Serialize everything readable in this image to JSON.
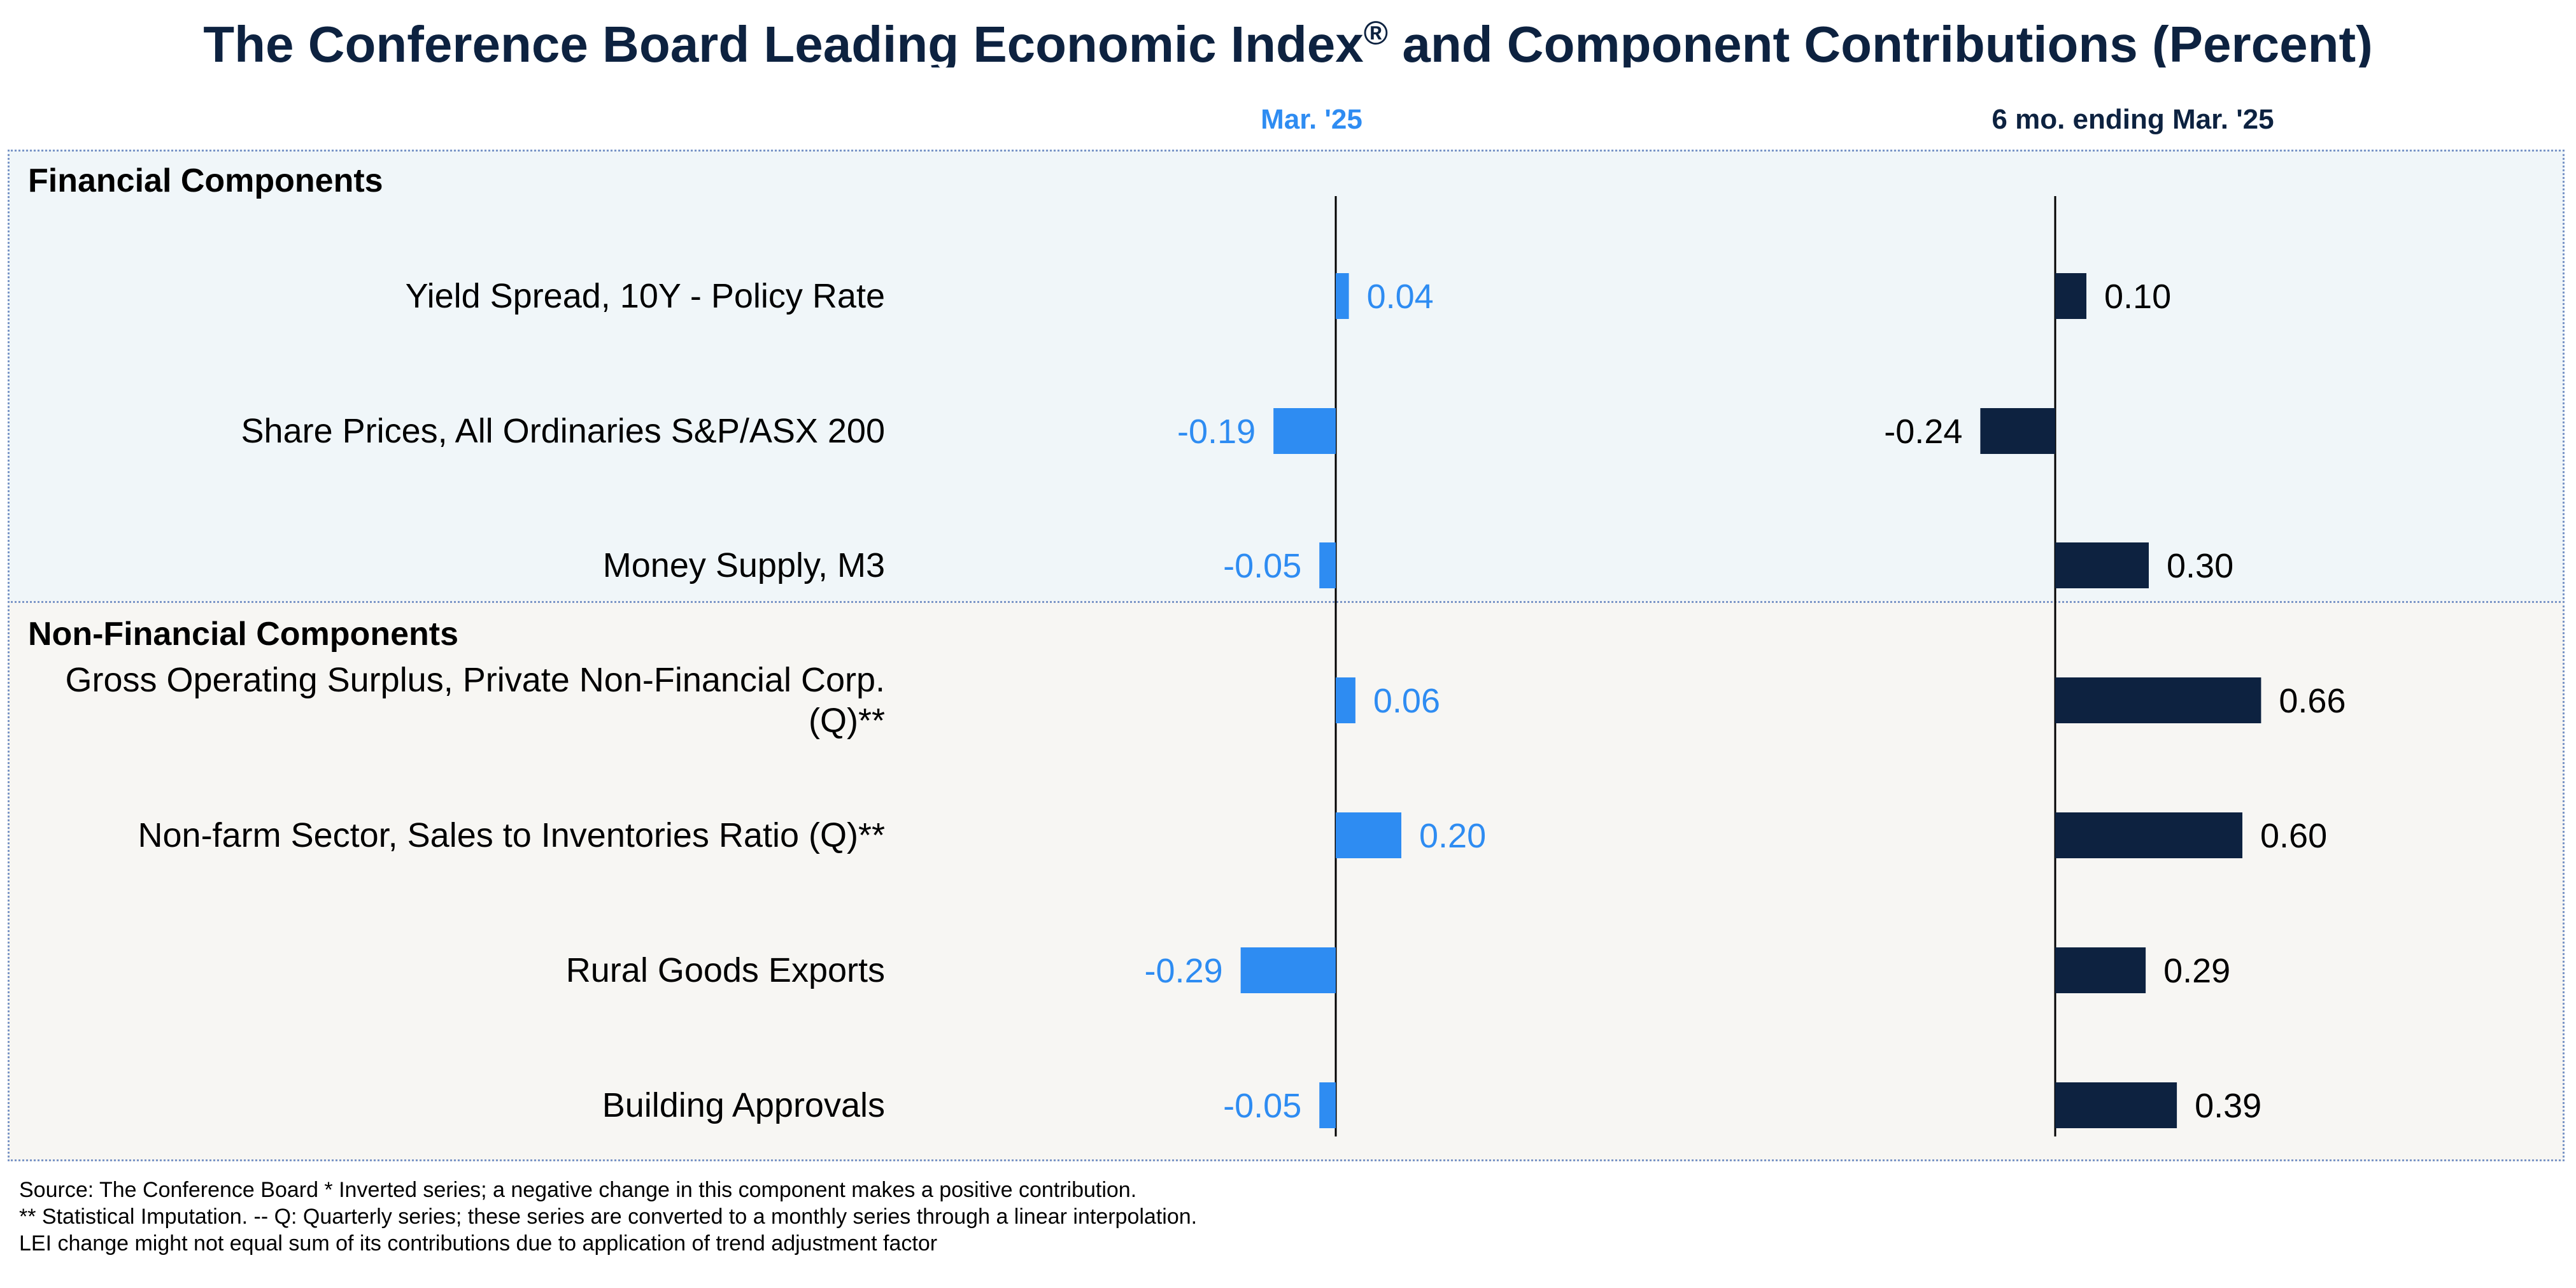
{
  "title": "The Conference Board Leading Economic Index",
  "title_mark": "®",
  "title_suffix": " and Component Contributions (Percent)",
  "columns": [
    "Mar. '25",
    "6 mo. ending Mar. '25"
  ],
  "colors": {
    "monthly_bar": "#2e8cf2",
    "six_month_bar": "#0d2240",
    "title": "#0d2240"
  },
  "sections": [
    {
      "title": "Financial Components"
    },
    {
      "title": "Non-Financial Components"
    }
  ],
  "chart_data": {
    "type": "bar",
    "orientation": "horizontal",
    "categories": [
      "Yield Spread, 10Y - Policy Rate",
      "Share Prices, All Ordinaries S&P/ASX 200",
      "Money Supply, M3",
      "Gross Operating Surplus, Private Non-Financial Corp. (Q)**",
      "Non-farm Sector, Sales to Inventories Ratio (Q)**",
      "Rural Goods Exports",
      "Building Approvals"
    ],
    "category_lines": [
      [
        "Yield Spread, 10Y - Policy Rate"
      ],
      [
        "Share Prices, All Ordinaries S&P/ASX 200"
      ],
      [
        "Money Supply, M3"
      ],
      [
        "Gross Operating Surplus, Private Non-Financial Corp.",
        "(Q)**"
      ],
      [
        "Non-farm Sector, Sales to Inventories Ratio (Q)**"
      ],
      [
        "Rural Goods Exports"
      ],
      [
        "Building Approvals"
      ]
    ],
    "category_section": [
      0,
      0,
      0,
      1,
      1,
      1,
      1
    ],
    "series": [
      {
        "name": "Mar. '25",
        "values": [
          0.04,
          -0.19,
          -0.05,
          0.06,
          0.2,
          -0.29,
          -0.05
        ],
        "labels": [
          "0.04",
          "-0.19",
          "-0.05",
          "0.06",
          "0.20",
          "-0.29",
          "-0.05"
        ]
      },
      {
        "name": "6 mo. ending Mar. '25",
        "values": [
          0.1,
          -0.24,
          0.3,
          0.66,
          0.6,
          0.29,
          0.39
        ],
        "labels": [
          "0.10",
          "-0.24",
          "0.30",
          "0.66",
          "0.60",
          "0.29",
          "0.39"
        ]
      }
    ],
    "grid": false,
    "legend": "none"
  },
  "footnotes": [
    "Source: The Conference Board *  Inverted series; a negative change in this component makes a positive contribution.",
    "**  Statistical Imputation. -- Q: Quarterly series; these series are converted to a monthly series through a linear interpolation.",
    "LEI change might not equal sum of its contributions due to application of trend adjustment factor"
  ]
}
